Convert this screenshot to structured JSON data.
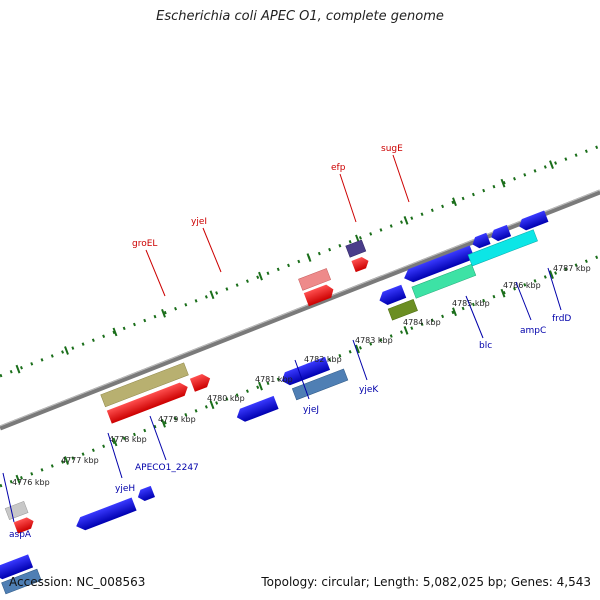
{
  "title": "Escherichia coli APEC O1, complete genome",
  "footer": {
    "accession": "Accession: NC_008563",
    "summary": "Topology: circular; Length: 5,082,025 bp; Genes: 4,543"
  },
  "colors": {
    "backbone": "#888888",
    "tick": "#1a6e1a",
    "label_forward": "#cc0000",
    "label_reverse": "#0000aa"
  },
  "scale_labels": [
    "4776 kbp",
    "4777 kbp",
    "4778 kbp",
    "4779 kbp",
    "4780 kbp",
    "4781 kbp",
    "4782 kbp",
    "4783 kbp",
    "4784 kbp",
    "4785 kbp",
    "4786 kbp",
    "4787 kbp"
  ],
  "gene_labels": {
    "forward": [
      "groEL",
      "yjeI",
      "efp",
      "sugE"
    ],
    "reverse": [
      "aspA",
      "yjeH",
      "APECO1_2247",
      "yjeJ",
      "yjeK",
      "blc",
      "ampC",
      "frdD"
    ]
  }
}
